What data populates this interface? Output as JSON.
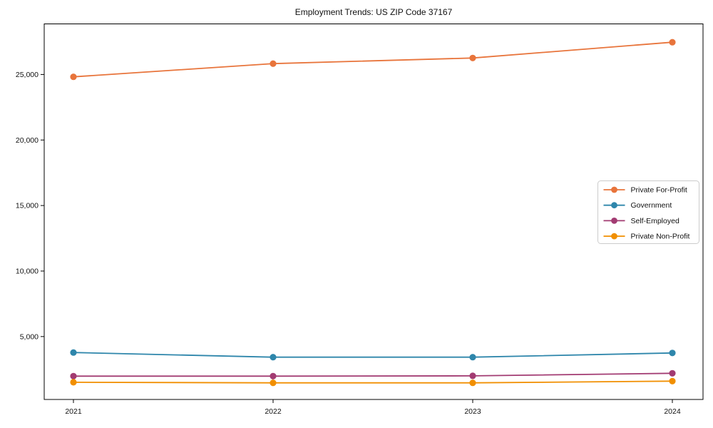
{
  "title": "Employment Trends: US ZIP Code 37167",
  "chart_data": {
    "type": "line",
    "title": "Employment Trends: US ZIP Code 37167",
    "xlabel": "",
    "ylabel": "",
    "x": [
      "2021",
      "2022",
      "2023",
      "2024"
    ],
    "series": [
      {
        "name": "Private For-Profit",
        "color": "#E8743B",
        "values": [
          24820,
          25830,
          26260,
          27460
        ]
      },
      {
        "name": "Government",
        "color": "#2E86AB",
        "values": [
          3780,
          3430,
          3430,
          3750
        ]
      },
      {
        "name": "Self-Employed",
        "color": "#A23B72",
        "values": [
          1980,
          1980,
          2000,
          2200
        ]
      },
      {
        "name": "Private Non-Profit",
        "color": "#F18F01",
        "values": [
          1510,
          1470,
          1470,
          1600
        ]
      }
    ],
    "yticks": [
      5000,
      10000,
      15000,
      20000,
      25000
    ],
    "ytick_labels": [
      "5,000",
      "10,000",
      "15,000",
      "20,000",
      "25,000"
    ],
    "ylim": [
      200,
      28860
    ],
    "grid": false,
    "legend_position": "center right",
    "marker": "circle",
    "axis_color": "#000000",
    "legend_border_color": "#cccccc"
  }
}
